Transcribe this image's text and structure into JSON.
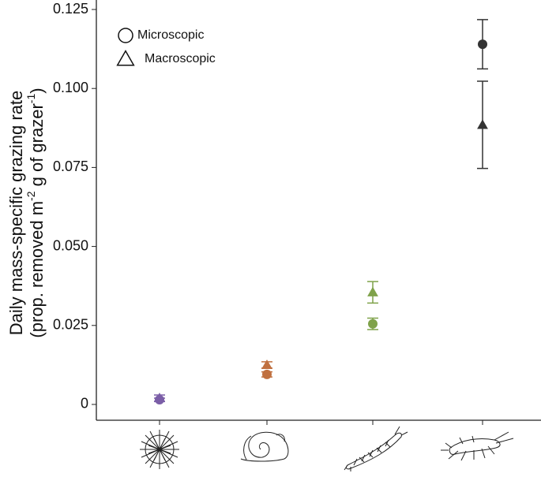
{
  "chart_data": {
    "type": "scatter",
    "ylabel": {
      "line1": "Daily mass-specific grazing rate",
      "line2": [
        "(prop. removed  m",
        "-2",
        " g of grazer",
        "-1",
        ")"
      ]
    },
    "categories": [
      null,
      null,
      null,
      null
    ],
    "series": [
      {
        "name": "Microscopic",
        "marker": "circle",
        "colors": [
          "#7b5ea7",
          "#c0703f",
          "#7fa24a",
          "#333333"
        ],
        "values": [
          0.0015,
          0.0095,
          0.0255,
          0.114
        ],
        "errors": [
          0.0005,
          0.0008,
          0.0018,
          0.0078
        ]
      },
      {
        "name": "Macroscopic",
        "marker": "triangle",
        "colors": [
          "#7b5ea7",
          "#c0703f",
          "#7fa24a",
          "#333333"
        ],
        "values": [
          0.002,
          0.0125,
          0.0355,
          0.0885
        ],
        "errors": [
          0.001,
          0.001,
          0.0034,
          0.0138
        ]
      }
    ],
    "ylim": [
      -0.005,
      0.128
    ],
    "yticks": [
      0,
      0.025,
      {
        "value": 0.05,
        "label": "0.050"
      },
      0.075,
      {
        "value": 0.1,
        "label": "0.100"
      },
      0.125
    ],
    "legend": "top-left"
  }
}
